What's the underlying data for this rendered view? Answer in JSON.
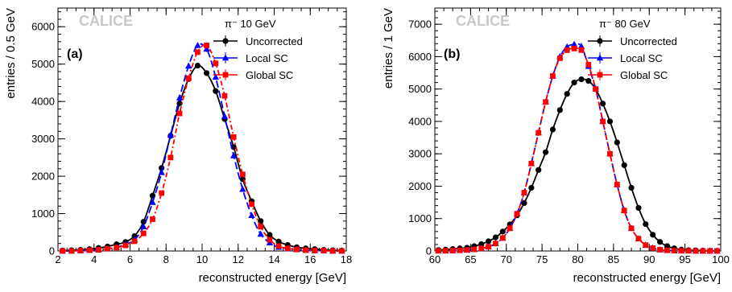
{
  "chart_data": [
    {
      "type": "scatter",
      "panel_tag": "(a)",
      "watermark": "CALICE",
      "legend_header": "π⁻ 10 GeV",
      "xlabel": "reconstructed energy [GeV]",
      "ylabel": "entries / 0.5 GeV",
      "xlim": [
        2,
        18
      ],
      "ylim": [
        0,
        6500
      ],
      "xticks": [
        2,
        4,
        6,
        8,
        10,
        12,
        14,
        16,
        18
      ],
      "yticks": [
        0,
        1000,
        2000,
        3000,
        4000,
        5000,
        6000
      ],
      "legend_position": "top-right",
      "series": [
        {
          "name": "Uncorrected",
          "marker": "circle",
          "color": "#000000",
          "dash": "",
          "x": [
            2.25,
            2.75,
            3.25,
            3.75,
            4.25,
            4.75,
            5.25,
            5.75,
            6.25,
            6.75,
            7.25,
            7.75,
            8.25,
            8.75,
            9.25,
            9.75,
            10.25,
            10.75,
            11.25,
            11.75,
            12.25,
            12.75,
            13.25,
            13.75,
            14.25,
            14.75,
            15.25,
            15.75,
            16.25,
            16.75,
            17.25,
            17.75
          ],
          "y": [
            10,
            20,
            30,
            50,
            80,
            120,
            180,
            240,
            400,
            780,
            1480,
            2220,
            3080,
            3950,
            4600,
            4960,
            4760,
            4280,
            3530,
            2780,
            1920,
            1330,
            800,
            430,
            250,
            160,
            100,
            70,
            50,
            30,
            20,
            10
          ]
        },
        {
          "name": "Local SC",
          "marker": "triangle",
          "color": "#0000ff",
          "dash": "9,4",
          "x": [
            2.25,
            2.75,
            3.25,
            3.75,
            4.25,
            4.75,
            5.25,
            5.75,
            6.25,
            6.75,
            7.25,
            7.75,
            8.25,
            8.75,
            9.25,
            9.75,
            10.25,
            10.75,
            11.25,
            11.75,
            12.25,
            12.75,
            13.25,
            13.75,
            14.25,
            14.75,
            15.25,
            15.75,
            16.25,
            16.75,
            17.25,
            17.75
          ],
          "y": [
            0,
            0,
            10,
            20,
            40,
            60,
            100,
            180,
            300,
            650,
            1300,
            2100,
            3100,
            4100,
            4950,
            5500,
            5400,
            4650,
            3600,
            2550,
            1650,
            950,
            450,
            220,
            100,
            60,
            40,
            20,
            10,
            10,
            0,
            0
          ]
        },
        {
          "name": "Global SC",
          "marker": "square",
          "color": "#ff0000",
          "dash": "6,3,2,3",
          "x": [
            2.25,
            2.75,
            3.25,
            3.75,
            4.25,
            4.75,
            5.25,
            5.75,
            6.25,
            6.75,
            7.25,
            7.75,
            8.25,
            8.75,
            9.25,
            9.75,
            10.25,
            10.75,
            11.25,
            11.75,
            12.25,
            12.75,
            13.25,
            13.75,
            14.25,
            14.75,
            15.25,
            15.75,
            16.25,
            16.75,
            17.25,
            17.75
          ],
          "y": [
            0,
            0,
            10,
            20,
            30,
            60,
            90,
            150,
            260,
            470,
            850,
            1550,
            2500,
            3680,
            4620,
            5320,
            5500,
            5020,
            4150,
            3050,
            2050,
            1250,
            650,
            300,
            130,
            70,
            40,
            20,
            10,
            10,
            0,
            0
          ]
        }
      ]
    },
    {
      "type": "scatter",
      "panel_tag": "(b)",
      "watermark": "CALICE",
      "legend_header": "π⁻ 80 GeV",
      "xlabel": "reconstructed energy [GeV]",
      "ylabel": "entries / 1 GeV",
      "xlim": [
        60,
        100
      ],
      "ylim": [
        0,
        7500
      ],
      "xticks": [
        60,
        65,
        70,
        75,
        80,
        85,
        90,
        95,
        100
      ],
      "yticks": [
        0,
        1000,
        2000,
        3000,
        4000,
        5000,
        6000,
        7000
      ],
      "legend_position": "top-right",
      "series": [
        {
          "name": "Uncorrected",
          "marker": "circle",
          "color": "#000000",
          "dash": "",
          "x": [
            60.5,
            61.5,
            62.5,
            63.5,
            64.5,
            65.5,
            66.5,
            67.5,
            68.5,
            69.5,
            70.5,
            71.5,
            72.5,
            73.5,
            74.5,
            75.5,
            76.5,
            77.5,
            78.5,
            79.5,
            80.5,
            81.5,
            82.5,
            83.5,
            84.5,
            85.5,
            86.5,
            87.5,
            88.5,
            89.5,
            90.5,
            91.5,
            92.5,
            93.5,
            94.5,
            95.5,
            96.5,
            97.5,
            98.5,
            99.5
          ],
          "y": [
            30,
            40,
            60,
            80,
            100,
            150,
            210,
            300,
            420,
            600,
            820,
            1100,
            1480,
            1950,
            2500,
            3050,
            3750,
            4350,
            4850,
            5200,
            5300,
            5250,
            5000,
            4550,
            4000,
            3350,
            2650,
            1950,
            1330,
            830,
            500,
            280,
            150,
            80,
            40,
            25,
            15,
            10,
            5,
            5
          ]
        },
        {
          "name": "Local SC",
          "marker": "triangle",
          "color": "#0000ff",
          "dash": "9,4",
          "x": [
            60.5,
            61.5,
            62.5,
            63.5,
            64.5,
            65.5,
            66.5,
            67.5,
            68.5,
            69.5,
            70.5,
            71.5,
            72.5,
            73.5,
            74.5,
            75.5,
            76.5,
            77.5,
            78.5,
            79.5,
            80.5,
            81.5,
            82.5,
            83.5,
            84.5,
            85.5,
            86.5,
            87.5,
            88.5,
            89.5,
            90.5,
            91.5,
            92.5,
            93.5,
            94.5,
            95.5,
            96.5,
            97.5,
            98.5,
            99.5
          ],
          "y": [
            5,
            5,
            10,
            20,
            30,
            50,
            80,
            130,
            230,
            400,
            700,
            1150,
            1800,
            2700,
            3650,
            4600,
            5400,
            6000,
            6300,
            6380,
            6320,
            5700,
            5000,
            4000,
            3000,
            2050,
            1250,
            700,
            380,
            180,
            90,
            40,
            20,
            10,
            5,
            5,
            0,
            0,
            0,
            0
          ]
        },
        {
          "name": "Global SC",
          "marker": "square",
          "color": "#ff0000",
          "dash": "6,3,2,3",
          "x": [
            60.5,
            61.5,
            62.5,
            63.5,
            64.5,
            65.5,
            66.5,
            67.5,
            68.5,
            69.5,
            70.5,
            71.5,
            72.5,
            73.5,
            74.5,
            75.5,
            76.5,
            77.5,
            78.5,
            79.5,
            80.5,
            81.5,
            82.5,
            83.5,
            84.5,
            85.5,
            86.5,
            87.5,
            88.5,
            89.5,
            90.5,
            91.5,
            92.5,
            93.5,
            94.5,
            95.5,
            96.5,
            97.5,
            98.5,
            99.5
          ],
          "y": [
            5,
            5,
            10,
            20,
            30,
            50,
            80,
            130,
            230,
            400,
            700,
            1150,
            1800,
            2700,
            3650,
            4600,
            5400,
            5950,
            6200,
            6250,
            6200,
            5750,
            5000,
            4000,
            3000,
            2050,
            1250,
            700,
            380,
            180,
            90,
            40,
            20,
            10,
            5,
            5,
            0,
            0,
            0,
            0
          ]
        }
      ]
    }
  ]
}
